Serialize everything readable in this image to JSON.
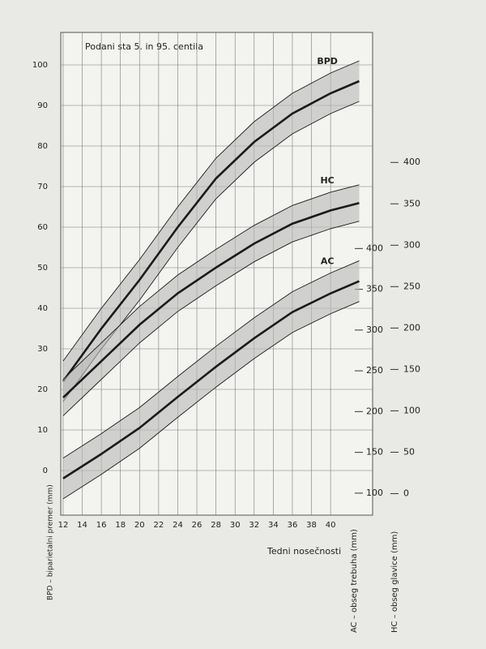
{
  "chart_data": {
    "type": "line",
    "annotation": "Podani sta 5. in 95. centila",
    "xlabel": "Tedni nosečnosti",
    "x": [
      12,
      16,
      20,
      24,
      28,
      32,
      36,
      40,
      43
    ],
    "xlim": [
      11.75,
      44.4
    ],
    "xticks": [
      12,
      14,
      16,
      18,
      20,
      22,
      24,
      26,
      28,
      30,
      32,
      34,
      36,
      38,
      40
    ],
    "ylabel": "BPD – biparietalni premer (mm)",
    "ylim": [
      -11,
      108
    ],
    "yticks": [
      0,
      10,
      20,
      30,
      40,
      50,
      60,
      70,
      80,
      90,
      100
    ],
    "y2label": "AC – obseg trebuha (mm)",
    "y2lim": [
      73,
      665
    ],
    "y2ticks": [
      100,
      150,
      200,
      250,
      300,
      350,
      400
    ],
    "y3label": "HC – obseg glavice (mm)",
    "y3lim": [
      -26,
      557
    ],
    "y3ticks": [
      0,
      50,
      100,
      150,
      200,
      250,
      300,
      350,
      400
    ],
    "grid": true,
    "band_color": "#b9b9b7",
    "line_color": "#1a1a1a",
    "curves": [
      {
        "name": "BPD",
        "axis": "y",
        "p5": [
          17,
          30,
          42,
          55,
          67,
          76,
          83,
          88,
          91
        ],
        "p50": [
          22,
          35,
          47,
          60,
          72,
          81,
          88,
          93,
          96
        ],
        "p95": [
          27,
          40,
          52,
          65,
          77,
          86,
          93,
          98,
          101
        ]
      },
      {
        "name": "HC",
        "axis": "y3",
        "p5": [
          94,
          138,
          182,
          220,
          251,
          280,
          304,
          320,
          329
        ],
        "p50": [
          116,
          160,
          204,
          242,
          273,
          302,
          326,
          342,
          351
        ],
        "p95": [
          138,
          182,
          226,
          264,
          295,
          324,
          348,
          364,
          373
        ]
      },
      {
        "name": "AC",
        "axis": "y2",
        "p5": [
          93,
          123,
          155,
          193,
          230,
          265,
          297,
          320,
          335
        ],
        "p50": [
          118,
          148,
          180,
          218,
          255,
          290,
          322,
          345,
          360
        ],
        "p95": [
          143,
          173,
          205,
          243,
          280,
          315,
          347,
          370,
          385
        ]
      }
    ]
  }
}
